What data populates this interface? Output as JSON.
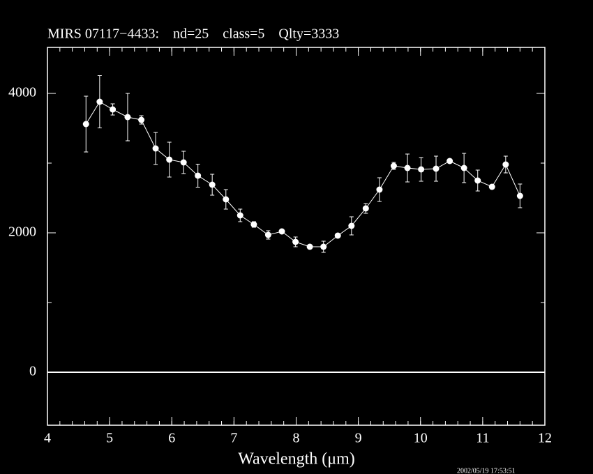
{
  "chart_data": {
    "type": "scatter",
    "title": "MIRS 07117−4433:    nd=25    class=5    Qlty=3333",
    "x_label": "Wavelength (μm)",
    "timestamp": "2002/05/19 17:53:51",
    "color": "#ffffff",
    "connect_points": true,
    "zero_line": true,
    "xlim": [
      4,
      12
    ],
    "xticks": [
      4,
      5,
      6,
      7,
      8,
      9,
      10,
      11,
      12
    ],
    "xminor_step": 0.2,
    "ylim": [
      -760,
      4660
    ],
    "yticks": [
      0,
      2000,
      4000
    ],
    "yminor_ticks": [
      1000,
      3000
    ],
    "x": [
      4.62,
      4.84,
      5.05,
      5.29,
      5.51,
      5.74,
      5.96,
      6.19,
      6.42,
      6.65,
      6.87,
      7.1,
      7.32,
      7.55,
      7.77,
      7.99,
      8.22,
      8.44,
      8.67,
      8.89,
      9.12,
      9.34,
      9.57,
      9.79,
      10.01,
      10.25,
      10.47,
      10.7,
      10.92,
      11.15,
      11.37,
      11.6
    ],
    "values": [
      3560,
      3880,
      3770,
      3660,
      3620,
      3210,
      3050,
      3010,
      2820,
      2690,
      2480,
      2250,
      2120,
      1970,
      2020,
      1870,
      1800,
      1800,
      1960,
      2100,
      2350,
      2620,
      2960,
      2930,
      2910,
      2920,
      3030,
      2930,
      2750,
      2660,
      2980,
      2530
    ],
    "errors": [
      400,
      375,
      80,
      340,
      60,
      230,
      250,
      160,
      165,
      150,
      140,
      90,
      40,
      60,
      30,
      70,
      20,
      80,
      30,
      130,
      70,
      170,
      50,
      200,
      170,
      180,
      30,
      210,
      150,
      30,
      120,
      170
    ]
  }
}
